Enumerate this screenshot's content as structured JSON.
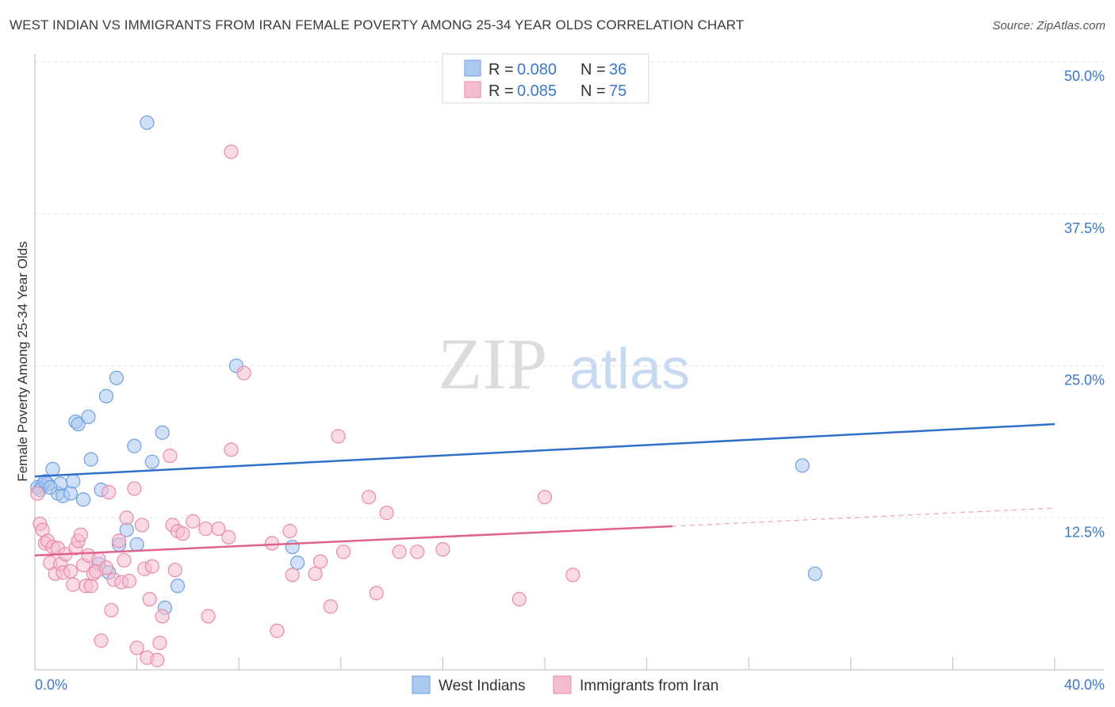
{
  "title": "WEST INDIAN VS IMMIGRANTS FROM IRAN FEMALE POVERTY AMONG 25-34 YEAR OLDS CORRELATION CHART",
  "source": "Source: ZipAtlas.com",
  "watermark": {
    "zip": "ZIP",
    "atlas": "atlas"
  },
  "chart_data": {
    "type": "scatter",
    "title": "WEST INDIAN VS IMMIGRANTS FROM IRAN FEMALE POVERTY AMONG 25-34 YEAR OLDS CORRELATION CHART",
    "xlabel": "",
    "ylabel": "Female Poverty Among 25-34 Year Olds",
    "xlim": [
      0,
      40
    ],
    "ylim": [
      0,
      50
    ],
    "x_tick_labels": [
      "0.0%",
      "40.0%"
    ],
    "y_ticks": [
      12.5,
      25.0,
      37.5,
      50.0
    ],
    "y_tick_labels": [
      "12.5%",
      "25.0%",
      "37.5%",
      "50.0%"
    ],
    "grid": "horizontal dashed",
    "legend": {
      "position": "top-center",
      "entries": [
        {
          "r_label": "R =",
          "r_value": "0.080",
          "n_label": "N =",
          "n_value": "36"
        },
        {
          "r_label": "R =",
          "r_value": "0.085",
          "n_label": "N =",
          "n_value": "75"
        }
      ]
    },
    "series": [
      {
        "name": "West Indians",
        "color": "#6fa0e0",
        "fill": "#aac8f0",
        "trend_color": "#2f6fc9",
        "trend": {
          "x": [
            0,
            40
          ],
          "y": [
            15.9,
            20.2
          ]
        },
        "points": [
          [
            0.3,
            15.2
          ],
          [
            0.5,
            15.3
          ],
          [
            0.7,
            16.5
          ],
          [
            0.9,
            14.5
          ],
          [
            1.0,
            15.3
          ],
          [
            1.1,
            14.3
          ],
          [
            1.4,
            14.5
          ],
          [
            1.5,
            15.5
          ],
          [
            1.6,
            20.4
          ],
          [
            1.7,
            20.2
          ],
          [
            1.9,
            14.0
          ],
          [
            2.1,
            20.8
          ],
          [
            2.2,
            17.3
          ],
          [
            2.5,
            8.7
          ],
          [
            2.6,
            14.8
          ],
          [
            2.8,
            22.5
          ],
          [
            2.9,
            8.0
          ],
          [
            3.2,
            24.0
          ],
          [
            3.3,
            10.3
          ],
          [
            3.6,
            11.5
          ],
          [
            3.9,
            18.4
          ],
          [
            4.0,
            10.3
          ],
          [
            4.4,
            45.0
          ],
          [
            4.6,
            17.1
          ],
          [
            5.0,
            19.5
          ],
          [
            5.1,
            5.1
          ],
          [
            5.6,
            6.9
          ],
          [
            7.9,
            25.0
          ],
          [
            10.1,
            10.1
          ],
          [
            10.3,
            8.8
          ],
          [
            30.1,
            16.8
          ],
          [
            30.6,
            7.9
          ],
          [
            0.1,
            15.0
          ],
          [
            0.2,
            14.8
          ],
          [
            0.4,
            15.5
          ],
          [
            0.6,
            15.0
          ]
        ]
      },
      {
        "name": "Immigrants from Iran",
        "color": "#e98aaa",
        "fill": "#f5bcd0",
        "trend_color": "#e0628f",
        "trend": {
          "x": [
            0,
            25
          ],
          "y": [
            9.4,
            11.8
          ]
        },
        "trend_extension": {
          "x": [
            25,
            40
          ],
          "y": [
            11.8,
            13.3
          ]
        },
        "points": [
          [
            0.1,
            14.5
          ],
          [
            0.2,
            12.0
          ],
          [
            0.3,
            11.5
          ],
          [
            0.4,
            10.4
          ],
          [
            0.5,
            10.6
          ],
          [
            0.6,
            8.8
          ],
          [
            0.7,
            10.1
          ],
          [
            0.8,
            7.9
          ],
          [
            0.9,
            10.0
          ],
          [
            1.0,
            8.7
          ],
          [
            1.1,
            8.0
          ],
          [
            1.2,
            9.5
          ],
          [
            1.4,
            8.1
          ],
          [
            1.5,
            7.0
          ],
          [
            1.6,
            10.0
          ],
          [
            1.7,
            10.6
          ],
          [
            1.8,
            11.1
          ],
          [
            1.9,
            8.6
          ],
          [
            2.0,
            6.9
          ],
          [
            2.1,
            9.4
          ],
          [
            2.2,
            6.9
          ],
          [
            2.3,
            7.9
          ],
          [
            2.4,
            8.1
          ],
          [
            2.5,
            9.1
          ],
          [
            2.6,
            2.4
          ],
          [
            2.8,
            8.4
          ],
          [
            2.9,
            14.6
          ],
          [
            3.0,
            4.9
          ],
          [
            3.1,
            7.4
          ],
          [
            3.3,
            10.6
          ],
          [
            3.4,
            7.2
          ],
          [
            3.5,
            9.0
          ],
          [
            3.6,
            12.5
          ],
          [
            3.7,
            7.3
          ],
          [
            3.9,
            14.9
          ],
          [
            4.0,
            1.8
          ],
          [
            4.2,
            11.9
          ],
          [
            4.3,
            8.3
          ],
          [
            4.4,
            1.0
          ],
          [
            4.5,
            5.8
          ],
          [
            4.6,
            8.5
          ],
          [
            4.8,
            0.8
          ],
          [
            4.9,
            2.2
          ],
          [
            5.0,
            4.4
          ],
          [
            5.3,
            17.6
          ],
          [
            5.4,
            11.9
          ],
          [
            5.5,
            8.2
          ],
          [
            5.6,
            11.4
          ],
          [
            5.8,
            11.2
          ],
          [
            6.2,
            12.2
          ],
          [
            6.7,
            11.6
          ],
          [
            6.8,
            4.4
          ],
          [
            7.2,
            11.6
          ],
          [
            7.6,
            10.9
          ],
          [
            7.7,
            18.1
          ],
          [
            8.2,
            24.4
          ],
          [
            7.7,
            42.6
          ],
          [
            9.3,
            10.4
          ],
          [
            9.5,
            3.2
          ],
          [
            10.0,
            11.4
          ],
          [
            10.1,
            7.8
          ],
          [
            11.0,
            7.9
          ],
          [
            11.2,
            8.9
          ],
          [
            11.6,
            5.2
          ],
          [
            11.9,
            19.2
          ],
          [
            12.1,
            9.7
          ],
          [
            13.1,
            14.2
          ],
          [
            13.4,
            6.3
          ],
          [
            13.8,
            12.9
          ],
          [
            14.3,
            9.7
          ],
          [
            15.0,
            9.7
          ],
          [
            16.0,
            9.9
          ],
          [
            19.0,
            5.8
          ],
          [
            20.0,
            14.2
          ],
          [
            21.1,
            7.8
          ]
        ]
      }
    ]
  }
}
